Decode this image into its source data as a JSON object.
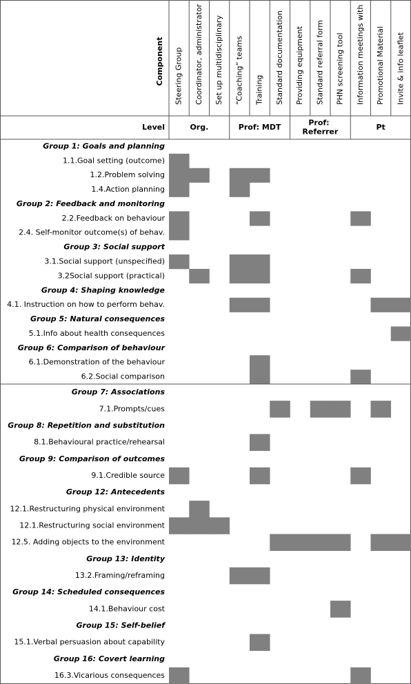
{
  "header": {
    "component": "Component",
    "columns": [
      "Steering Group",
      "Coordinator, administrator",
      "Set up  multidisciplinary",
      "“Coaching” teams",
      "Training",
      "Standard documentation",
      "Providing equipment",
      "Standard referral form",
      "PHN screening tool",
      "Information meetings with",
      "Promotional Material",
      "Invite & info leaflet"
    ]
  },
  "level": {
    "label": "Level",
    "groups": [
      "Org.",
      "Prof: MDT",
      "Prof: Referrer",
      "Pt"
    ]
  },
  "sections": [
    {
      "rows": [
        {
          "group": "Group 1: Goals and planning"
        },
        {
          "item": "1.1.Goal setting (outcome)",
          "cells": [
            true,
            false,
            false,
            false,
            false,
            false,
            false,
            false,
            false,
            false,
            false,
            false
          ]
        },
        {
          "item": "1.2.Problem solving",
          "cells": [
            true,
            true,
            false,
            true,
            true,
            false,
            false,
            false,
            false,
            false,
            false,
            false
          ]
        },
        {
          "item": "1.4.Action planning",
          "cells": [
            true,
            false,
            false,
            true,
            false,
            false,
            false,
            false,
            false,
            false,
            false,
            false
          ]
        },
        {
          "group": "Group 2: Feedback and monitoring"
        },
        {
          "item": "2.2.Feedback on behaviour",
          "cells": [
            true,
            false,
            false,
            false,
            true,
            false,
            false,
            false,
            false,
            true,
            false,
            false
          ]
        },
        {
          "item": "2.4. Self-monitor outcome(s) of behav.",
          "cells": [
            true,
            false,
            false,
            false,
            false,
            false,
            false,
            false,
            false,
            false,
            false,
            false
          ]
        },
        {
          "group": "Group 3: Social support"
        },
        {
          "item": "3.1.Social support (unspecified)",
          "cells": [
            true,
            false,
            false,
            true,
            true,
            false,
            false,
            false,
            false,
            false,
            false,
            false
          ]
        },
        {
          "item": "3.2Social support (practical)",
          "cells": [
            false,
            true,
            false,
            true,
            true,
            false,
            false,
            false,
            false,
            true,
            false,
            false
          ]
        },
        {
          "group": "Group 4: Shaping knowledge"
        },
        {
          "item": "4.1. Instruction on how to perform behav.",
          "cells": [
            false,
            false,
            false,
            true,
            true,
            false,
            false,
            false,
            false,
            false,
            true,
            true
          ]
        },
        {
          "group": "Group 5: Natural consequences"
        },
        {
          "item": "5.1.Info about health consequences",
          "cells": [
            false,
            false,
            false,
            false,
            false,
            false,
            false,
            false,
            false,
            false,
            false,
            true
          ]
        },
        {
          "group": "Group 6: Comparison of behaviour"
        },
        {
          "item": "6.1.Demonstration of the behaviour",
          "cells": [
            false,
            false,
            false,
            false,
            true,
            false,
            false,
            false,
            false,
            false,
            false,
            false
          ]
        },
        {
          "item": "6.2.Social comparison",
          "cells": [
            false,
            false,
            false,
            false,
            true,
            false,
            false,
            false,
            false,
            true,
            false,
            false
          ]
        }
      ]
    },
    {
      "rows": [
        {
          "group": "Group 7: Associations"
        },
        {
          "item": "7.1.Prompts/cues",
          "cells": [
            false,
            false,
            false,
            false,
            false,
            true,
            false,
            true,
            true,
            false,
            true,
            false
          ]
        },
        {
          "group": "Group 8: Repetition and substitution"
        },
        {
          "item": "8.1.Behavioural practice/rehearsal",
          "cells": [
            false,
            false,
            false,
            false,
            true,
            false,
            false,
            false,
            false,
            false,
            false,
            false
          ]
        },
        {
          "group": "Group 9: Comparison of outcomes"
        },
        {
          "item": "9.1.Credible source",
          "cells": [
            true,
            false,
            false,
            false,
            true,
            false,
            false,
            false,
            false,
            true,
            false,
            false
          ]
        },
        {
          "group": "Group 12: Antecedents"
        },
        {
          "item": "12.1.Restructuring physical environment",
          "cells": [
            false,
            true,
            false,
            false,
            false,
            false,
            false,
            false,
            false,
            false,
            false,
            false
          ]
        },
        {
          "item": "12.1.Restructuring social environment",
          "cells": [
            true,
            true,
            true,
            false,
            false,
            false,
            false,
            false,
            false,
            false,
            false,
            false
          ]
        },
        {
          "item": "12.5. Adding objects to the environment",
          "cells": [
            false,
            false,
            false,
            false,
            false,
            true,
            true,
            true,
            true,
            false,
            true,
            true
          ]
        },
        {
          "group": "Group 13: Identity"
        },
        {
          "item": "13.2.Framing/reframing",
          "cells": [
            false,
            false,
            false,
            true,
            true,
            false,
            false,
            false,
            false,
            false,
            false,
            false
          ]
        },
        {
          "group": "Group 14: Scheduled consequences"
        },
        {
          "item": "14.1.Behaviour cost",
          "cells": [
            false,
            false,
            false,
            false,
            false,
            false,
            false,
            false,
            true,
            false,
            false,
            false
          ]
        },
        {
          "group": "Group 15: Self-belief"
        },
        {
          "item": "15.1.Verbal persuasion about capability",
          "cells": [
            false,
            false,
            false,
            false,
            true,
            false,
            false,
            false,
            false,
            false,
            false,
            false
          ]
        },
        {
          "group": "Group 16: Covert learning"
        },
        {
          "item": "16.3.Vicarious consequences",
          "cells": [
            true,
            false,
            false,
            false,
            false,
            false,
            false,
            false,
            false,
            true,
            false,
            false
          ]
        }
      ]
    }
  ]
}
